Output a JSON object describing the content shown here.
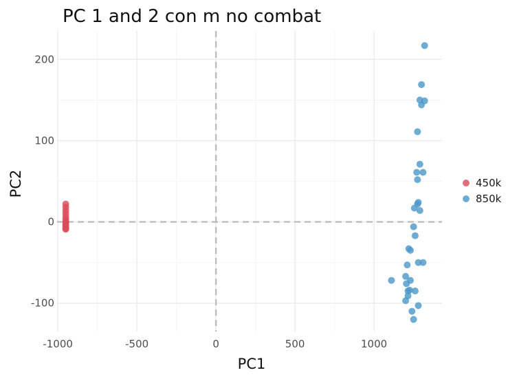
{
  "chart_data": {
    "type": "scatter",
    "title": "PC 1 and 2 con m no combat",
    "xlabel": "PC1",
    "ylabel": "PC2",
    "xlim": [
      -1005,
      1430
    ],
    "ylim": [
      -135,
      235
    ],
    "x_ticks": [
      -1000,
      -500,
      0,
      500,
      1000
    ],
    "y_ticks": [
      -100,
      0,
      100,
      200
    ],
    "x_tick_labels": [
      "-1000",
      "-500",
      "0",
      "500",
      "1000"
    ],
    "y_tick_labels": [
      "-100",
      "0",
      "100",
      "200"
    ],
    "reference_lines": {
      "x": 0,
      "y": 0,
      "style": "dashed"
    },
    "grid": true,
    "legend_position": "right",
    "series": [
      {
        "name": "450k",
        "color": "#dc4a5a",
        "points": [
          [
            -950,
            22
          ],
          [
            -950,
            18
          ],
          [
            -950,
            14
          ],
          [
            -950,
            10
          ],
          [
            -950,
            6
          ],
          [
            -950,
            3
          ],
          [
            -950,
            0
          ],
          [
            -950,
            -2
          ],
          [
            -950,
            -4
          ],
          [
            -950,
            -6
          ],
          [
            -950,
            -8
          ],
          [
            -950,
            -9
          ]
        ]
      },
      {
        "name": "850k",
        "color": "#4b97c8",
        "points": [
          [
            1320,
            217
          ],
          [
            1300,
            169
          ],
          [
            1290,
            150
          ],
          [
            1320,
            149
          ],
          [
            1300,
            144
          ],
          [
            1275,
            111
          ],
          [
            1290,
            71
          ],
          [
            1270,
            61
          ],
          [
            1310,
            61
          ],
          [
            1275,
            52
          ],
          [
            1280,
            24
          ],
          [
            1275,
            22
          ],
          [
            1255,
            17
          ],
          [
            1290,
            14
          ],
          [
            1250,
            -6
          ],
          [
            1260,
            -17
          ],
          [
            1220,
            -33
          ],
          [
            1230,
            -35
          ],
          [
            1280,
            -50
          ],
          [
            1310,
            -50
          ],
          [
            1210,
            -53
          ],
          [
            1200,
            -67
          ],
          [
            1110,
            -72
          ],
          [
            1230,
            -72
          ],
          [
            1205,
            -76
          ],
          [
            1225,
            -84
          ],
          [
            1215,
            -85
          ],
          [
            1260,
            -85
          ],
          [
            1215,
            -91
          ],
          [
            1200,
            -97
          ],
          [
            1280,
            -103
          ],
          [
            1240,
            -110
          ],
          [
            1250,
            -120
          ]
        ]
      }
    ]
  }
}
